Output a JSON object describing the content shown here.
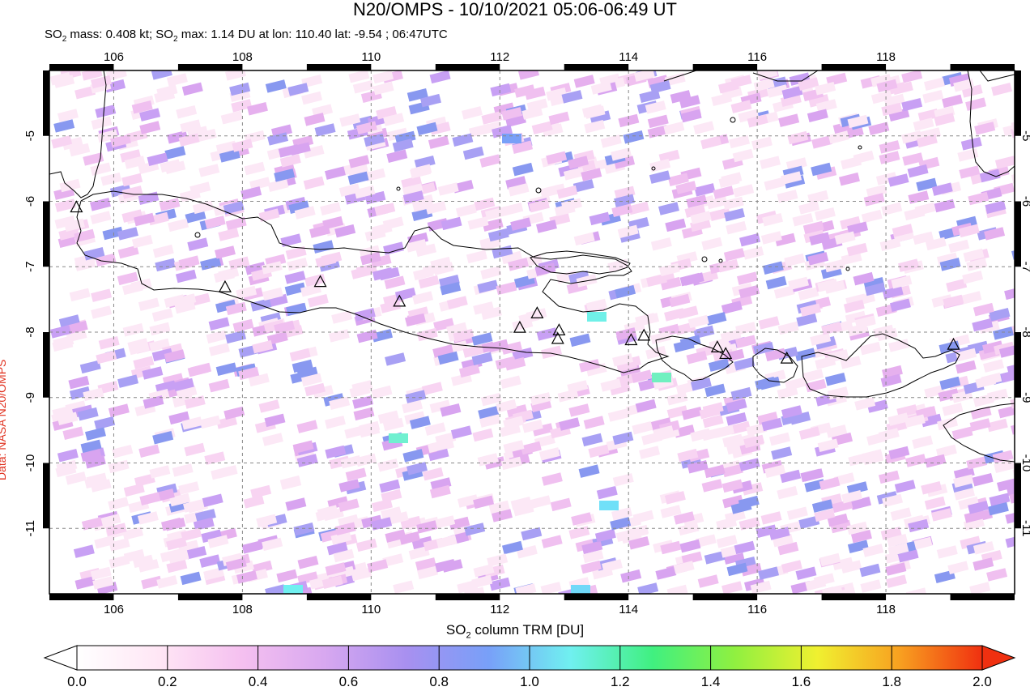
{
  "title": "N20/OMPS - 10/10/2021 05:06-06:49 UT",
  "subtitle": {
    "prefix": "SO",
    "text1": " mass: 0.408 kt; SO",
    "text2": " max: 1.14 DU at lon: 110.40 lat: -9.54 ; 06:47UTC",
    "sub": "2"
  },
  "credit": "Data: NASA N20/OMPS",
  "colorbar": {
    "label_prefix": "SO",
    "label_sub": "2",
    "label_suffix": " column TRM [DU]",
    "ticks": [
      "0.0",
      "0.2",
      "0.4",
      "0.6",
      "0.8",
      "1.0",
      "1.2",
      "1.4",
      "1.6",
      "1.8",
      "2.0"
    ],
    "colors": [
      "#ffffff",
      "#ffe6f5",
      "#f5c0f0",
      "#d8a8f0",
      "#a890f0",
      "#78a0f8",
      "#70f0f0",
      "#40f080",
      "#90f040",
      "#f0f030",
      "#f8a020",
      "#f03010"
    ]
  },
  "map": {
    "lon_ticks": [
      "106",
      "108",
      "110",
      "112",
      "114",
      "116",
      "118"
    ],
    "lat_ticks": [
      "-5",
      "-6",
      "-7",
      "-8",
      "-9",
      "-10",
      "-11"
    ],
    "lon_values": [
      106,
      108,
      110,
      112,
      114,
      116,
      118
    ],
    "lat_values": [
      -5,
      -6,
      -7,
      -8,
      -9,
      -10,
      -11
    ],
    "lon_range": [
      105,
      120
    ],
    "lat_range": [
      -12,
      -4
    ]
  },
  "volcanoes": [
    {
      "lon": 105.42,
      "lat": -6.1
    },
    {
      "lon": 107.73,
      "lat": -7.32
    },
    {
      "lon": 109.21,
      "lat": -7.24
    },
    {
      "lon": 110.44,
      "lat": -7.54
    },
    {
      "lon": 112.31,
      "lat": -7.94
    },
    {
      "lon": 112.58,
      "lat": -7.72
    },
    {
      "lon": 112.92,
      "lat": -7.98
    },
    {
      "lon": 112.9,
      "lat": -8.11
    },
    {
      "lon": 114.04,
      "lat": -8.13
    },
    {
      "lon": 114.24,
      "lat": -8.06
    },
    {
      "lon": 115.38,
      "lat": -8.24
    },
    {
      "lon": 115.51,
      "lat": -8.34
    },
    {
      "lon": 116.46,
      "lat": -8.41
    },
    {
      "lon": 119.05,
      "lat": -8.2
    }
  ]
}
